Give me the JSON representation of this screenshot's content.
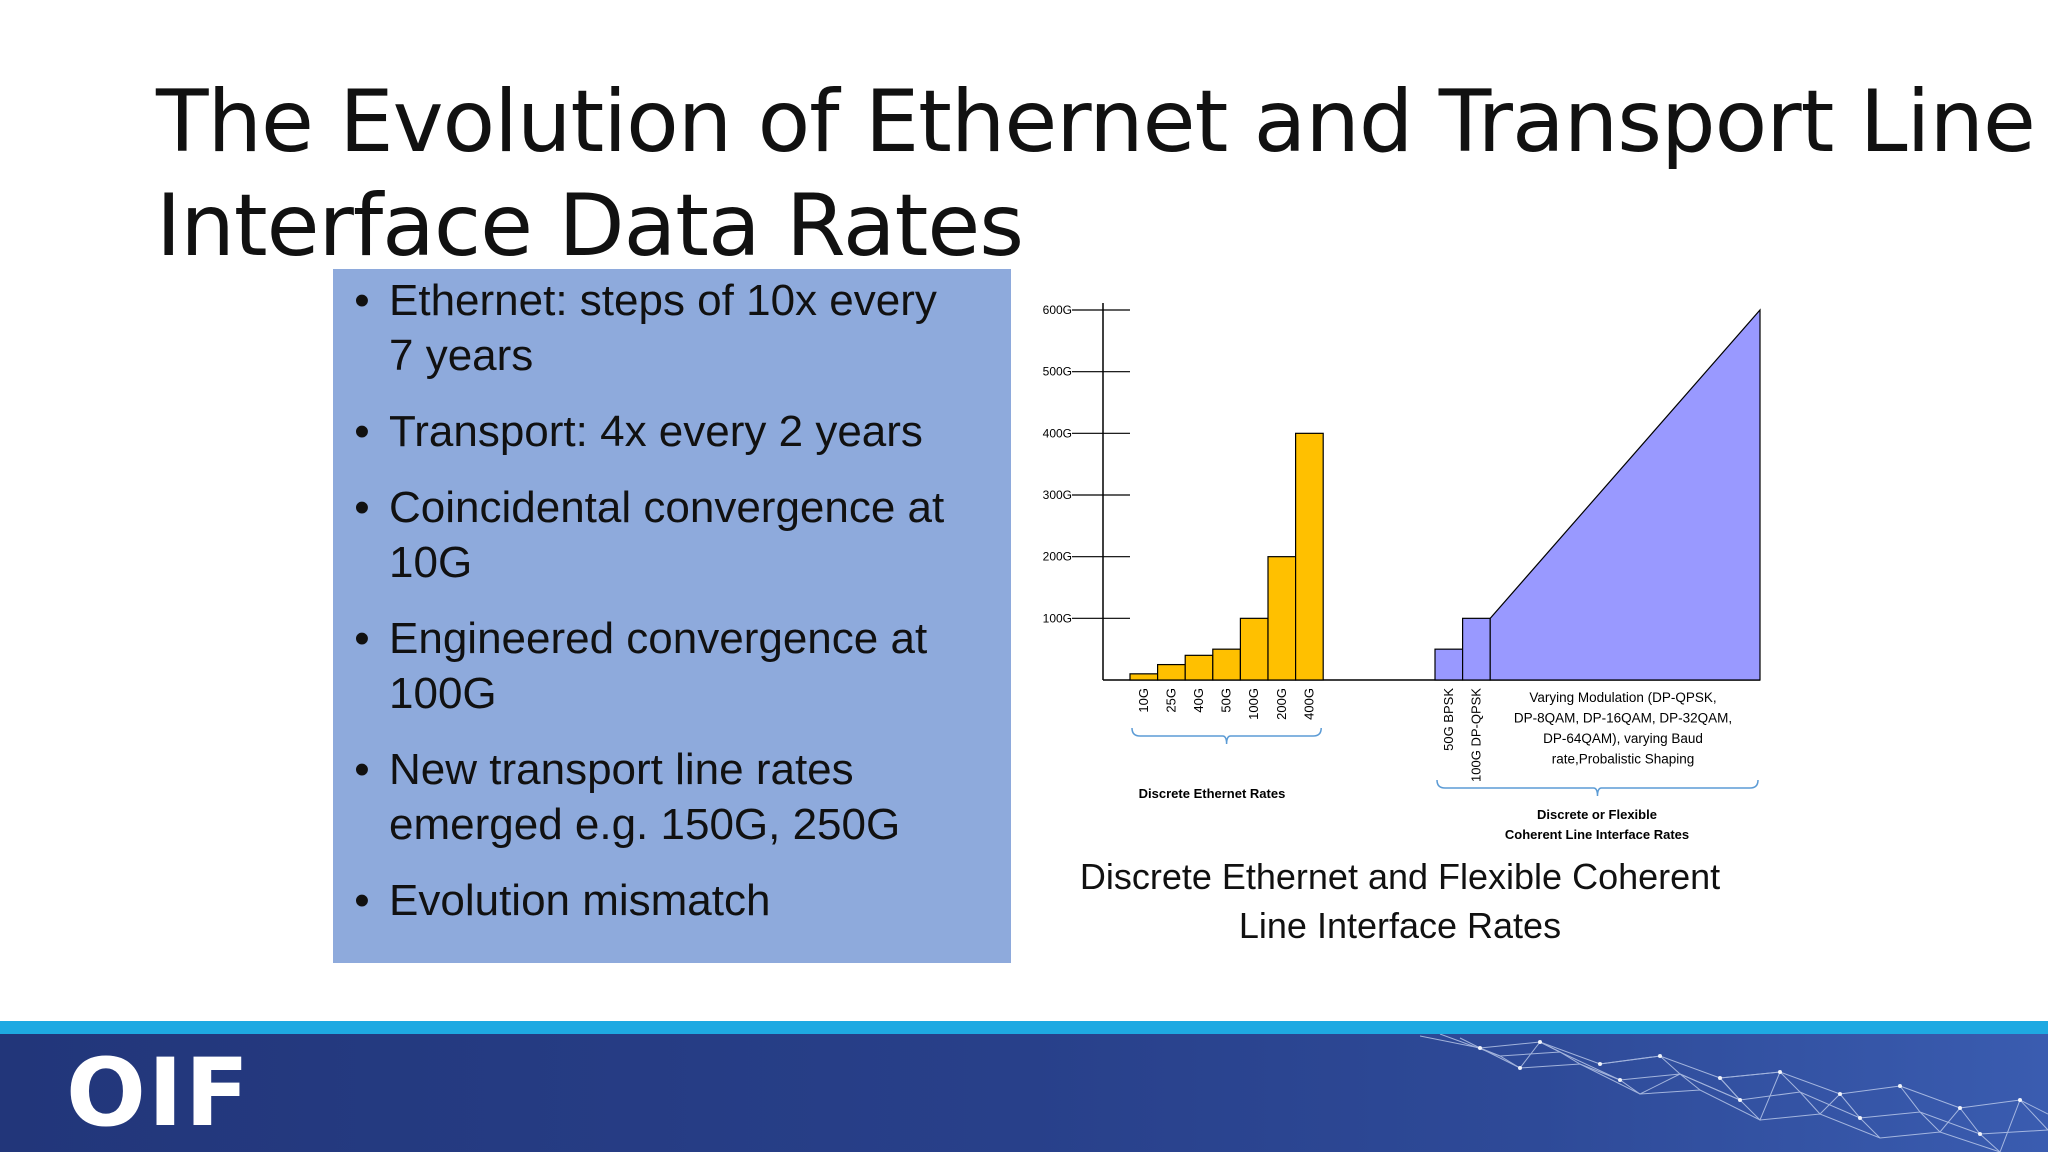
{
  "slide": {
    "title_lines": [
      "The Evolution of Ethernet and Transport Line",
      "Interface Data Rates"
    ],
    "bullets": [
      [
        "Ethernet: steps of 10x every",
        "7 years"
      ],
      [
        "Transport: 4x every 2 years"
      ],
      [
        "Coincidental convergence at",
        "10G"
      ],
      [
        "Engineered convergence at",
        "100G"
      ],
      [
        "New transport line rates",
        "emerged e.g. 150G, 250G"
      ],
      [
        "Evolution mismatch"
      ]
    ],
    "caption_lines": [
      "Discrete Ethernet and Flexible Coherent",
      "Line Interface Rates"
    ],
    "logo": "OIF"
  },
  "colors": {
    "bullet_box": "#8eaadc",
    "ethernet_bars": "#ffc000",
    "coherent": "#9999ff",
    "bracket": "#5b9bd5",
    "footer": "#28408a",
    "footer_stripe": "#1ea9e2"
  },
  "chart_data": {
    "type": "bar",
    "y_ticks": [
      "100G",
      "200G",
      "300G",
      "400G",
      "500G",
      "600G"
    ],
    "y_tick_values": [
      100,
      200,
      300,
      400,
      500,
      600
    ],
    "ylim": [
      0,
      600
    ],
    "ethernet": {
      "categories": [
        "10G",
        "25G",
        "40G",
        "50G",
        "100G",
        "200G",
        "400G"
      ],
      "values": [
        10,
        25,
        40,
        50,
        100,
        200,
        400
      ],
      "group_label": "Discrete Ethernet Rates"
    },
    "coherent": {
      "categories": [
        "50G BPSK",
        "100G DP-QPSK"
      ],
      "values": [
        50,
        100
      ],
      "flexible_range": [
        100,
        600
      ],
      "flexible_label_lines": [
        "Varying Modulation (DP-QPSK,",
        "DP-8QAM, DP-16QAM, DP-32QAM,",
        "DP-64QAM), varying Baud",
        "rate,Probalistic Shaping"
      ],
      "group_label_lines": [
        "Discrete or Flexible",
        "Coherent Line Interface Rates"
      ]
    }
  }
}
